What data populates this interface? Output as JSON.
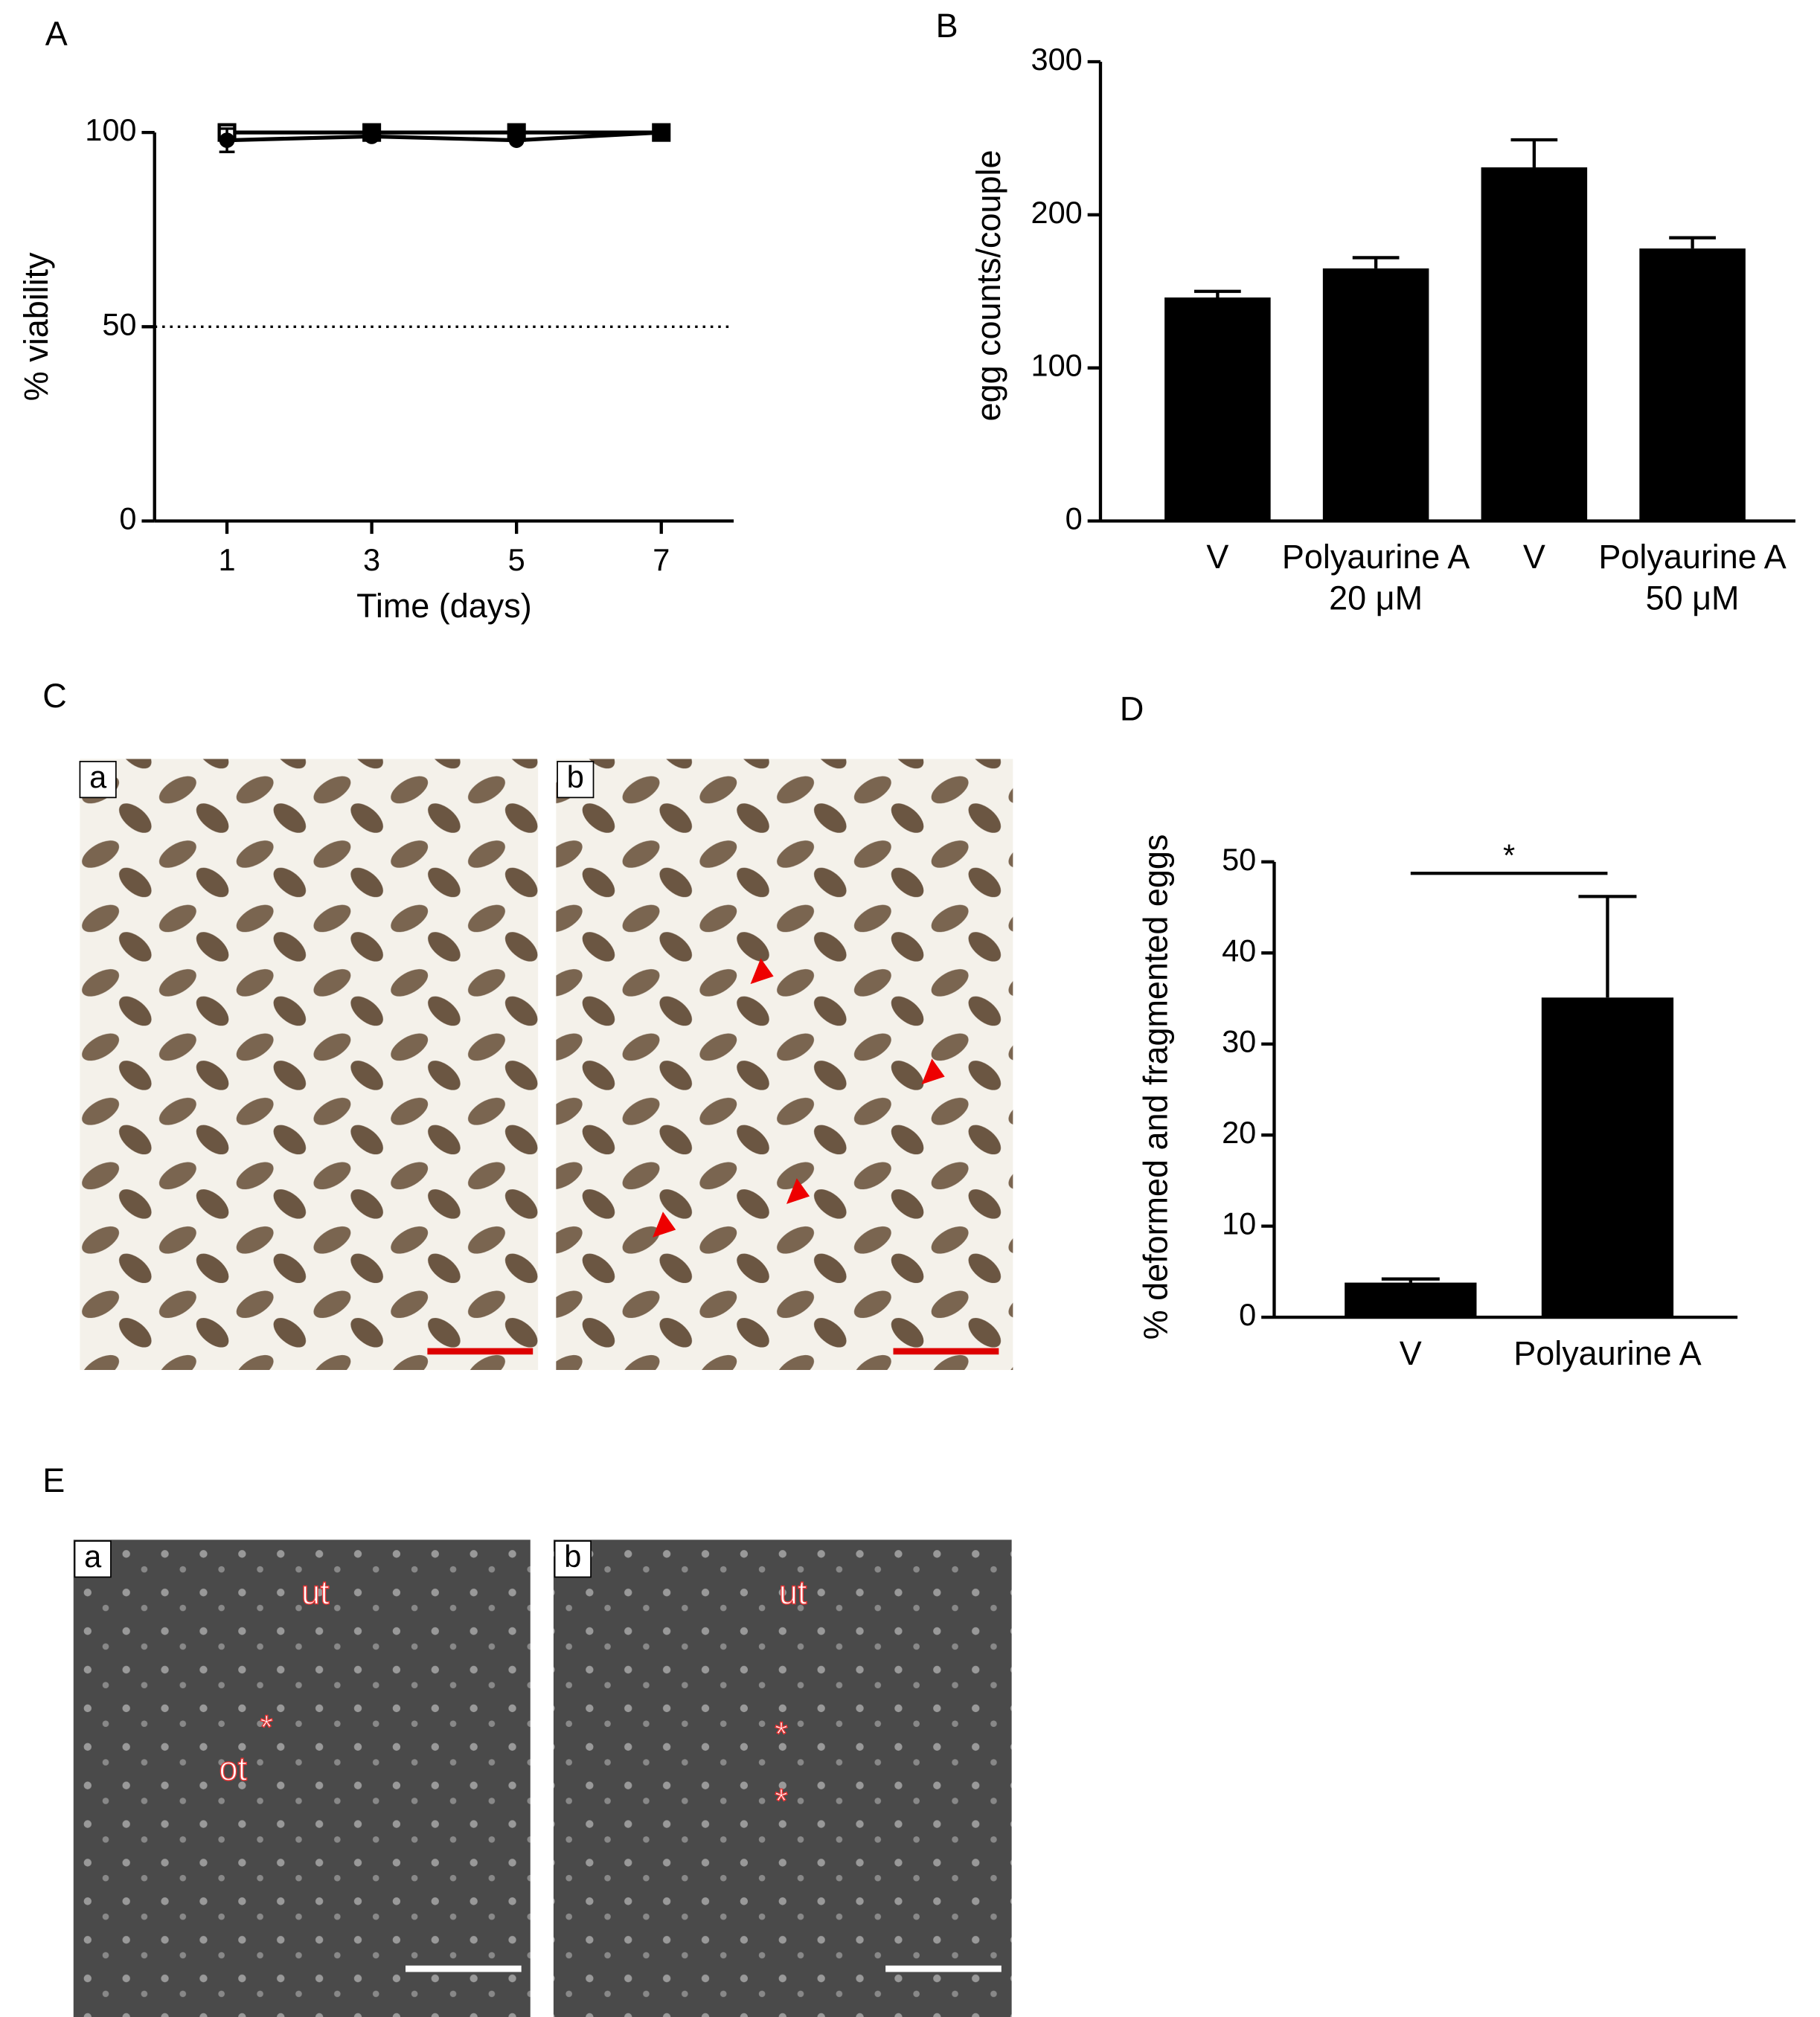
{
  "panel_labels": [
    "A",
    "B",
    "C",
    "D",
    "E"
  ],
  "panel_c": {
    "images": [
      "a",
      "b"
    ]
  },
  "panel_e": {
    "images": [
      "a",
      "b"
    ],
    "annotations": [
      "ut",
      "*",
      "ot",
      "ut",
      "*",
      "*"
    ]
  },
  "chart_data": [
    {
      "type": "line",
      "x_label": "Time (days)",
      "y_label": "% viability",
      "x": [
        1,
        3,
        5,
        7
      ],
      "series": [
        {
          "color": "#000000",
          "marker": "square",
          "values": [
            100,
            100,
            100,
            100
          ]
        },
        {
          "color": "#000000",
          "marker": "circle",
          "values": [
            98,
            99,
            98,
            100
          ],
          "errors": [
            3,
            0,
            0,
            0
          ]
        }
      ],
      "xlim": [
        0,
        8
      ],
      "xticks": [
        1,
        3,
        5,
        7
      ],
      "ylim": [
        0,
        100
      ],
      "yticks": [
        0,
        50,
        100
      ],
      "reference_line": 50
    },
    {
      "type": "bar",
      "y_label": "egg counts/couple",
      "categories": [
        "V",
        "Polyaurine A",
        "V",
        "Polyaurine A"
      ],
      "sublabels": [
        null,
        "20 μM",
        null,
        "50 μM"
      ],
      "values": [
        146,
        165,
        231,
        178
      ],
      "errors": [
        4,
        7,
        18,
        7
      ],
      "color": "#000000",
      "ylim": [
        0,
        300
      ],
      "yticks": [
        0,
        100,
        200,
        300
      ]
    },
    {
      "type": "bar",
      "y_label": "% deformed and fragmented eggs",
      "categories": [
        "V",
        "Polyaurine A"
      ],
      "values": [
        3.8,
        35.1
      ],
      "errors": [
        0.4,
        11.1
      ],
      "color": "#000000",
      "significance_label": "*",
      "ylim": [
        0,
        50
      ],
      "yticks": [
        0,
        10,
        20,
        30,
        40,
        50
      ]
    }
  ]
}
